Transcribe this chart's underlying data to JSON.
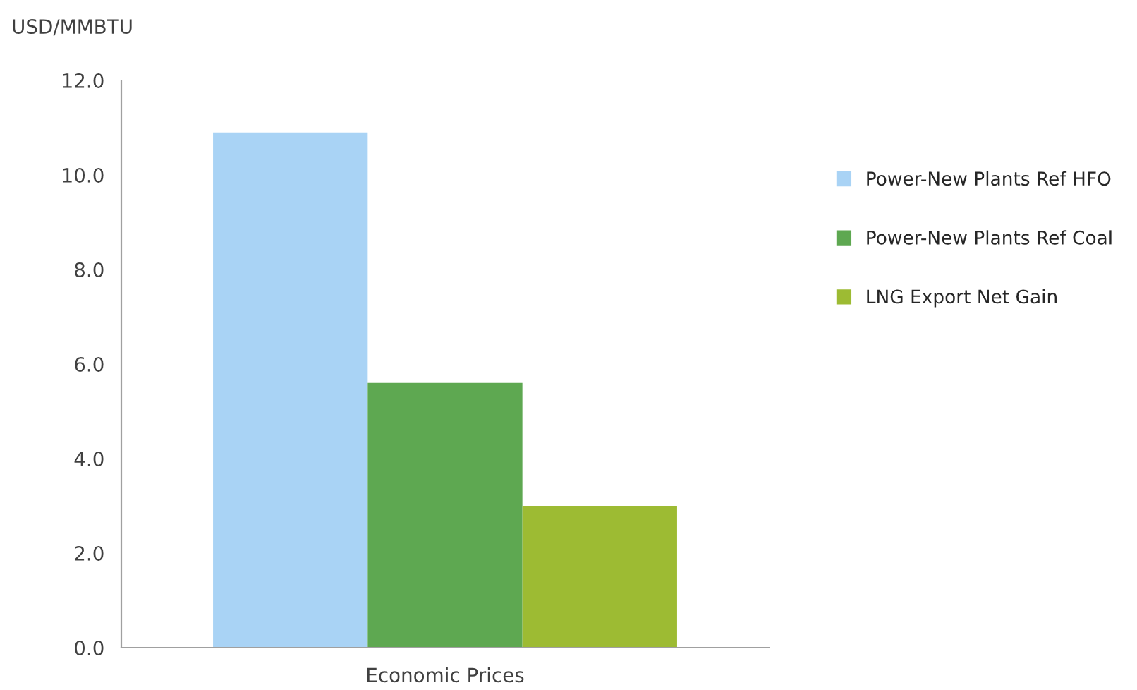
{
  "chart_data": {
    "type": "bar",
    "ylabel": "USD/MMBTU",
    "categories": [
      "Economic Prices"
    ],
    "series": [
      {
        "name": "Power-New Plants Ref HFO",
        "color": "#a9d3f5",
        "values": [
          10.9
        ]
      },
      {
        "name": "Power-New Plants Ref Coal",
        "color": "#5ea851",
        "values": [
          5.6
        ]
      },
      {
        "name": "LNG Export Net Gain",
        "color": "#9dbb33",
        "values": [
          3.0
        ]
      }
    ],
    "ylim": [
      0,
      12
    ],
    "yticks": [
      {
        "value": 0,
        "label": "0.0"
      },
      {
        "value": 2,
        "label": "2.0"
      },
      {
        "value": 4,
        "label": "4.0"
      },
      {
        "value": 6,
        "label": "6.0"
      },
      {
        "value": 8,
        "label": "8.0"
      },
      {
        "value": 10,
        "label": "10.0"
      },
      {
        "value": 12,
        "label": "12.0"
      }
    ],
    "grid": false,
    "legend": "right"
  }
}
